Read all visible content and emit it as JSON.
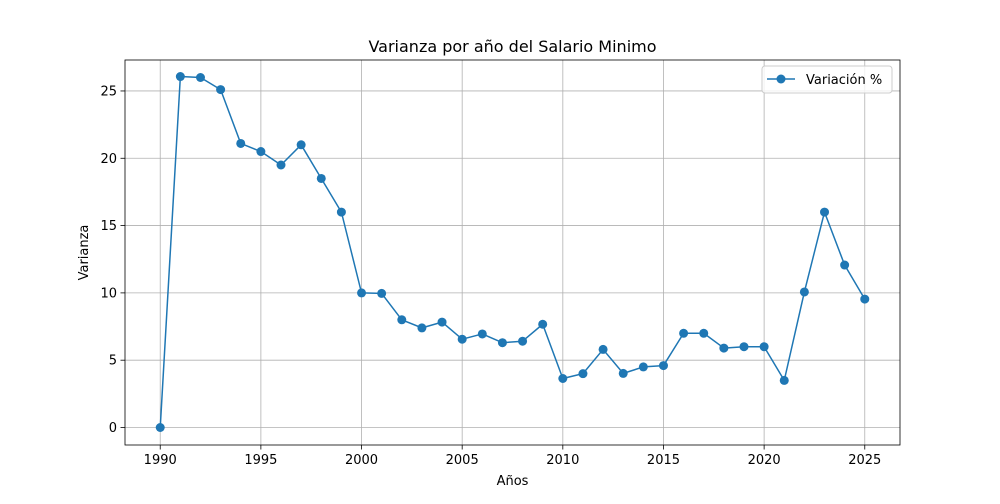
{
  "chart_data": {
    "type": "line",
    "title": "Varianza por año del Salario Minimo",
    "xlabel": "Años",
    "ylabel": "Varianza",
    "xlim": [
      1988.25,
      2026.75
    ],
    "ylim": [
      -1.3,
      27.3
    ],
    "xticks": [
      1990,
      1995,
      2000,
      2005,
      2010,
      2015,
      2020,
      2025
    ],
    "yticks": [
      0,
      5,
      10,
      15,
      20,
      25
    ],
    "grid": true,
    "legend_position": "top-right",
    "line_color": "#1f77b4",
    "series": [
      {
        "name": "Variación %",
        "x": [
          1990,
          1991,
          1992,
          1993,
          1994,
          1995,
          1996,
          1997,
          1998,
          1999,
          2000,
          2001,
          2002,
          2003,
          2004,
          2005,
          2006,
          2007,
          2008,
          2009,
          2010,
          2011,
          2012,
          2013,
          2014,
          2015,
          2016,
          2017,
          2018,
          2019,
          2020,
          2021,
          2022,
          2023,
          2024,
          2025
        ],
        "y": [
          0,
          26.07,
          26.0,
          25.1,
          21.1,
          20.5,
          19.5,
          21.0,
          18.5,
          16.0,
          10.0,
          9.96,
          8.0,
          7.4,
          7.83,
          6.56,
          6.95,
          6.3,
          6.41,
          7.67,
          3.64,
          4.0,
          5.8,
          4.02,
          4.5,
          4.6,
          7.0,
          7.0,
          5.9,
          6.0,
          6.0,
          3.5,
          10.07,
          16.0,
          12.07,
          9.54
        ]
      }
    ]
  }
}
